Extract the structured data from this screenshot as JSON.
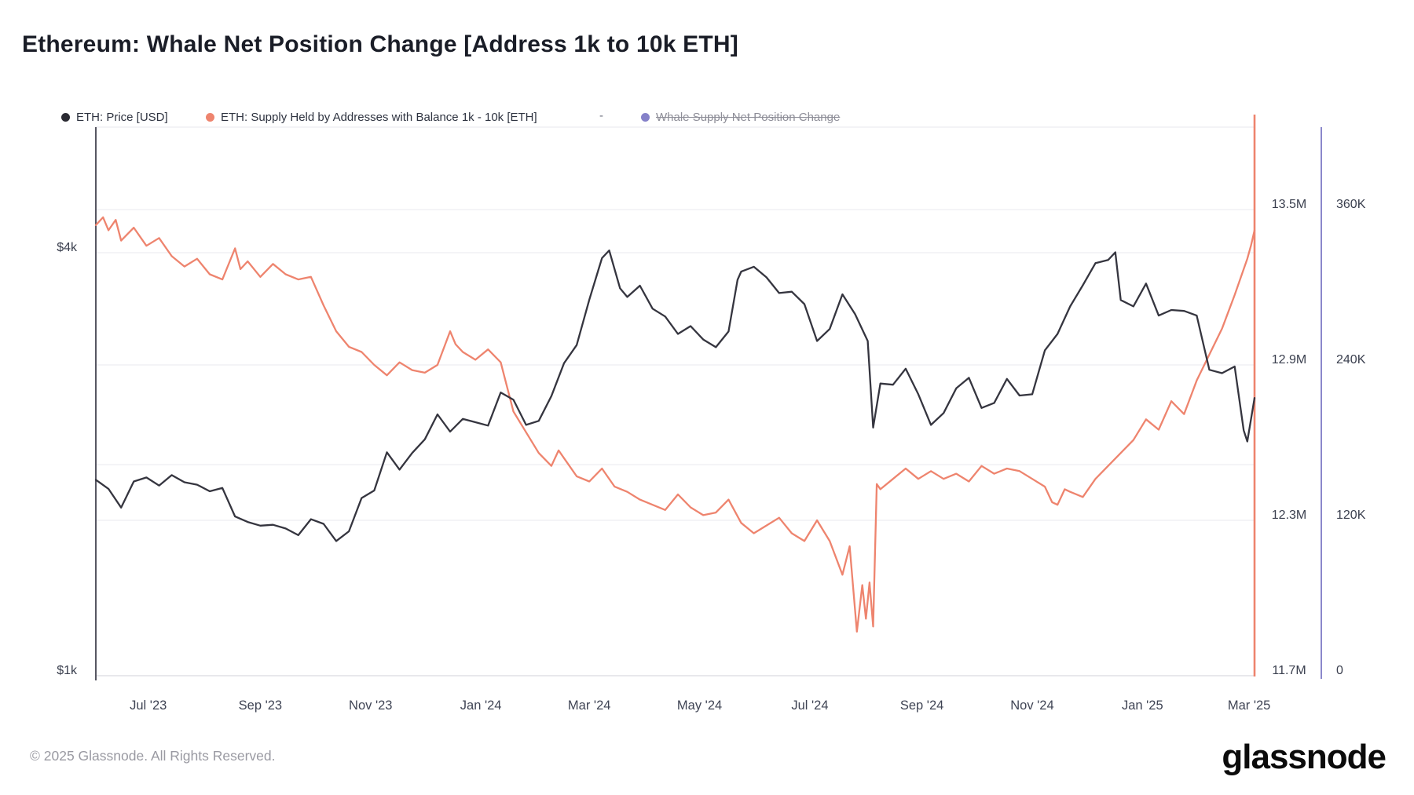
{
  "title": "Ethereum: Whale Net Position Change [Address 1k to 10k ETH]",
  "legend": {
    "separator": "-",
    "items": [
      {
        "label": "ETH: Price [USD]",
        "color": "#2b2b33",
        "disabled": false
      },
      {
        "label": "ETH: Supply Held by Addresses with Balance 1k - 10k [ETH]",
        "color": "#ee846e",
        "disabled": false
      },
      {
        "label": "Whale Supply Net Position Change",
        "color": "#8581c9",
        "disabled": true
      }
    ]
  },
  "footer": {
    "copyright": "© 2025 Glassnode. All Rights Reserved.",
    "brand": "glassnode"
  },
  "chart_data": {
    "type": "line",
    "x_domain_days": 641,
    "x_ticks": [
      {
        "d": 29,
        "label": "Jul '23"
      },
      {
        "d": 91,
        "label": "Sep '23"
      },
      {
        "d": 152,
        "label": "Nov '23"
      },
      {
        "d": 213,
        "label": "Jan '24"
      },
      {
        "d": 273,
        "label": "Mar '24"
      },
      {
        "d": 334,
        "label": "May '24"
      },
      {
        "d": 395,
        "label": "Jul '24"
      },
      {
        "d": 457,
        "label": "Sep '24"
      },
      {
        "d": 518,
        "label": "Nov '24"
      },
      {
        "d": 579,
        "label": "Jan '25"
      },
      {
        "d": 638,
        "label": "Mar '25"
      }
    ],
    "axes": {
      "price": {
        "side": "left",
        "scale": "log2",
        "ticks": [
          {
            "label": "$4k",
            "value": 4000
          },
          {
            "label": "$1k",
            "value": 1000
          }
        ],
        "unlabeled_gridlines": [
          2000
        ]
      },
      "supply": {
        "side": "right",
        "scale": "linear",
        "range": [
          11.7,
          13.5
        ],
        "unit": "M ETH",
        "ticks": [
          {
            "label": "13.5M",
            "value": 13.5
          },
          {
            "label": "12.9M",
            "value": 12.9
          },
          {
            "label": "12.3M",
            "value": 12.3
          },
          {
            "label": "11.7M",
            "value": 11.7
          }
        ]
      },
      "net_position": {
        "side": "right2",
        "scale": "linear",
        "range": [
          0,
          360000
        ],
        "ticks": [
          {
            "label": "360K",
            "value": 360
          },
          {
            "label": "240K",
            "value": 240
          },
          {
            "label": "120K",
            "value": 120
          },
          {
            "label": "0",
            "value": 0
          }
        ]
      }
    },
    "series": [
      {
        "name": "ETH: Supply Held by Addresses with Balance 1k - 10k [ETH]",
        "axis": "supply",
        "color": "#ee846e",
        "visible": true,
        "points": [
          [
            0,
            13.44
          ],
          [
            4,
            13.47
          ],
          [
            7,
            13.42
          ],
          [
            11,
            13.46
          ],
          [
            14,
            13.38
          ],
          [
            21,
            13.43
          ],
          [
            28,
            13.36
          ],
          [
            35,
            13.39
          ],
          [
            42,
            13.32
          ],
          [
            49,
            13.28
          ],
          [
            56,
            13.31
          ],
          [
            63,
            13.25
          ],
          [
            70,
            13.23
          ],
          [
            77,
            13.35
          ],
          [
            80,
            13.27
          ],
          [
            84,
            13.3
          ],
          [
            91,
            13.24
          ],
          [
            98,
            13.29
          ],
          [
            105,
            13.25
          ],
          [
            112,
            13.23
          ],
          [
            119,
            13.24
          ],
          [
            126,
            13.13
          ],
          [
            133,
            13.03
          ],
          [
            140,
            12.97
          ],
          [
            147,
            12.95
          ],
          [
            154,
            12.9
          ],
          [
            161,
            12.86
          ],
          [
            168,
            12.91
          ],
          [
            175,
            12.88
          ],
          [
            182,
            12.87
          ],
          [
            189,
            12.9
          ],
          [
            196,
            13.03
          ],
          [
            199,
            12.98
          ],
          [
            203,
            12.95
          ],
          [
            210,
            12.92
          ],
          [
            217,
            12.96
          ],
          [
            224,
            12.91
          ],
          [
            231,
            12.72
          ],
          [
            238,
            12.64
          ],
          [
            245,
            12.56
          ],
          [
            252,
            12.51
          ],
          [
            256,
            12.57
          ],
          [
            259,
            12.54
          ],
          [
            266,
            12.47
          ],
          [
            273,
            12.45
          ],
          [
            280,
            12.5
          ],
          [
            287,
            12.43
          ],
          [
            294,
            12.41
          ],
          [
            301,
            12.38
          ],
          [
            308,
            12.36
          ],
          [
            315,
            12.34
          ],
          [
            322,
            12.4
          ],
          [
            329,
            12.35
          ],
          [
            336,
            12.32
          ],
          [
            343,
            12.33
          ],
          [
            350,
            12.38
          ],
          [
            357,
            12.29
          ],
          [
            364,
            12.25
          ],
          [
            371,
            12.28
          ],
          [
            378,
            12.31
          ],
          [
            385,
            12.25
          ],
          [
            392,
            12.22
          ],
          [
            399,
            12.3
          ],
          [
            406,
            12.22
          ],
          [
            413,
            12.09
          ],
          [
            417,
            12.2
          ],
          [
            421,
            11.87
          ],
          [
            424,
            12.05
          ],
          [
            426,
            11.92
          ],
          [
            428,
            12.06
          ],
          [
            430,
            11.89
          ],
          [
            432,
            12.44
          ],
          [
            434,
            12.42
          ],
          [
            441,
            12.46
          ],
          [
            448,
            12.5
          ],
          [
            455,
            12.46
          ],
          [
            462,
            12.49
          ],
          [
            469,
            12.46
          ],
          [
            476,
            12.48
          ],
          [
            483,
            12.45
          ],
          [
            490,
            12.51
          ],
          [
            497,
            12.48
          ],
          [
            504,
            12.5
          ],
          [
            511,
            12.49
          ],
          [
            518,
            12.46
          ],
          [
            525,
            12.43
          ],
          [
            529,
            12.37
          ],
          [
            532,
            12.36
          ],
          [
            536,
            12.42
          ],
          [
            539,
            12.41
          ],
          [
            546,
            12.39
          ],
          [
            553,
            12.46
          ],
          [
            560,
            12.51
          ],
          [
            567,
            12.56
          ],
          [
            574,
            12.61
          ],
          [
            581,
            12.69
          ],
          [
            588,
            12.65
          ],
          [
            595,
            12.76
          ],
          [
            602,
            12.71
          ],
          [
            609,
            12.84
          ],
          [
            616,
            12.94
          ],
          [
            623,
            13.04
          ],
          [
            630,
            13.17
          ],
          [
            634,
            13.25
          ],
          [
            637,
            13.31
          ],
          [
            639,
            13.36
          ],
          [
            641,
            13.42
          ]
        ]
      },
      {
        "name": "ETH: Price [USD]",
        "axis": "price",
        "color": "#35353f",
        "visible": true,
        "points": [
          [
            0,
            1900
          ],
          [
            7,
            1845
          ],
          [
            14,
            1735
          ],
          [
            21,
            1890
          ],
          [
            28,
            1915
          ],
          [
            35,
            1865
          ],
          [
            42,
            1930
          ],
          [
            49,
            1885
          ],
          [
            56,
            1870
          ],
          [
            63,
            1830
          ],
          [
            70,
            1850
          ],
          [
            77,
            1685
          ],
          [
            84,
            1655
          ],
          [
            91,
            1635
          ],
          [
            98,
            1640
          ],
          [
            105,
            1620
          ],
          [
            112,
            1585
          ],
          [
            119,
            1670
          ],
          [
            126,
            1645
          ],
          [
            133,
            1555
          ],
          [
            140,
            1605
          ],
          [
            147,
            1790
          ],
          [
            154,
            1835
          ],
          [
            161,
            2080
          ],
          [
            168,
            1965
          ],
          [
            175,
            2075
          ],
          [
            182,
            2170
          ],
          [
            189,
            2355
          ],
          [
            196,
            2225
          ],
          [
            203,
            2320
          ],
          [
            210,
            2295
          ],
          [
            217,
            2270
          ],
          [
            224,
            2530
          ],
          [
            231,
            2470
          ],
          [
            238,
            2275
          ],
          [
            245,
            2305
          ],
          [
            252,
            2500
          ],
          [
            259,
            2785
          ],
          [
            266,
            2955
          ],
          [
            273,
            3430
          ],
          [
            280,
            3930
          ],
          [
            284,
            4030
          ],
          [
            290,
            3560
          ],
          [
            294,
            3460
          ],
          [
            301,
            3590
          ],
          [
            308,
            3330
          ],
          [
            315,
            3245
          ],
          [
            322,
            3065
          ],
          [
            329,
            3145
          ],
          [
            336,
            3010
          ],
          [
            343,
            2935
          ],
          [
            350,
            3090
          ],
          [
            355,
            3660
          ],
          [
            357,
            3760
          ],
          [
            364,
            3820
          ],
          [
            371,
            3690
          ],
          [
            378,
            3505
          ],
          [
            385,
            3520
          ],
          [
            392,
            3380
          ],
          [
            399,
            2995
          ],
          [
            406,
            3115
          ],
          [
            413,
            3490
          ],
          [
            420,
            3270
          ],
          [
            427,
            2995
          ],
          [
            430,
            2255
          ],
          [
            434,
            2605
          ],
          [
            441,
            2595
          ],
          [
            448,
            2735
          ],
          [
            455,
            2515
          ],
          [
            462,
            2275
          ],
          [
            469,
            2365
          ],
          [
            476,
            2565
          ],
          [
            483,
            2655
          ],
          [
            490,
            2405
          ],
          [
            497,
            2445
          ],
          [
            504,
            2645
          ],
          [
            511,
            2505
          ],
          [
            518,
            2515
          ],
          [
            525,
            2905
          ],
          [
            532,
            3065
          ],
          [
            539,
            3355
          ],
          [
            546,
            3595
          ],
          [
            553,
            3865
          ],
          [
            560,
            3905
          ],
          [
            564,
            4005
          ],
          [
            567,
            3425
          ],
          [
            574,
            3355
          ],
          [
            581,
            3615
          ],
          [
            588,
            3255
          ],
          [
            595,
            3315
          ],
          [
            602,
            3305
          ],
          [
            609,
            3255
          ],
          [
            616,
            2725
          ],
          [
            623,
            2695
          ],
          [
            630,
            2755
          ],
          [
            635,
            2235
          ],
          [
            637,
            2155
          ],
          [
            641,
            2485
          ]
        ]
      },
      {
        "name": "Whale Supply Net Position Change",
        "axis": "net_position",
        "color": "#8581c9",
        "visible": false,
        "points": []
      }
    ]
  }
}
